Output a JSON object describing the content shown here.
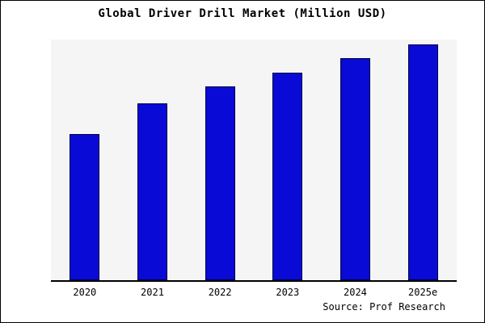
{
  "chart_data": {
    "type": "bar",
    "title": "Global Driver Drill Market (Million USD)",
    "categories": [
      "2020",
      "2021",
      "2022",
      "2023",
      "2024",
      "2025e"
    ],
    "values": [
      62,
      75,
      82,
      88,
      94,
      100
    ],
    "xlabel": "",
    "ylabel": "",
    "ylim": [
      0,
      102
    ],
    "grid": false,
    "legend_position": "none",
    "colors": {
      "bar_fill": "#0a0ad6",
      "bar_edge": "#000040",
      "plot_background": "#f5f5f5",
      "axis_line": "#000000",
      "frame_border": "#000000",
      "page_background": "#ffffff"
    }
  },
  "source": {
    "label": "Source: Prof Research"
  }
}
